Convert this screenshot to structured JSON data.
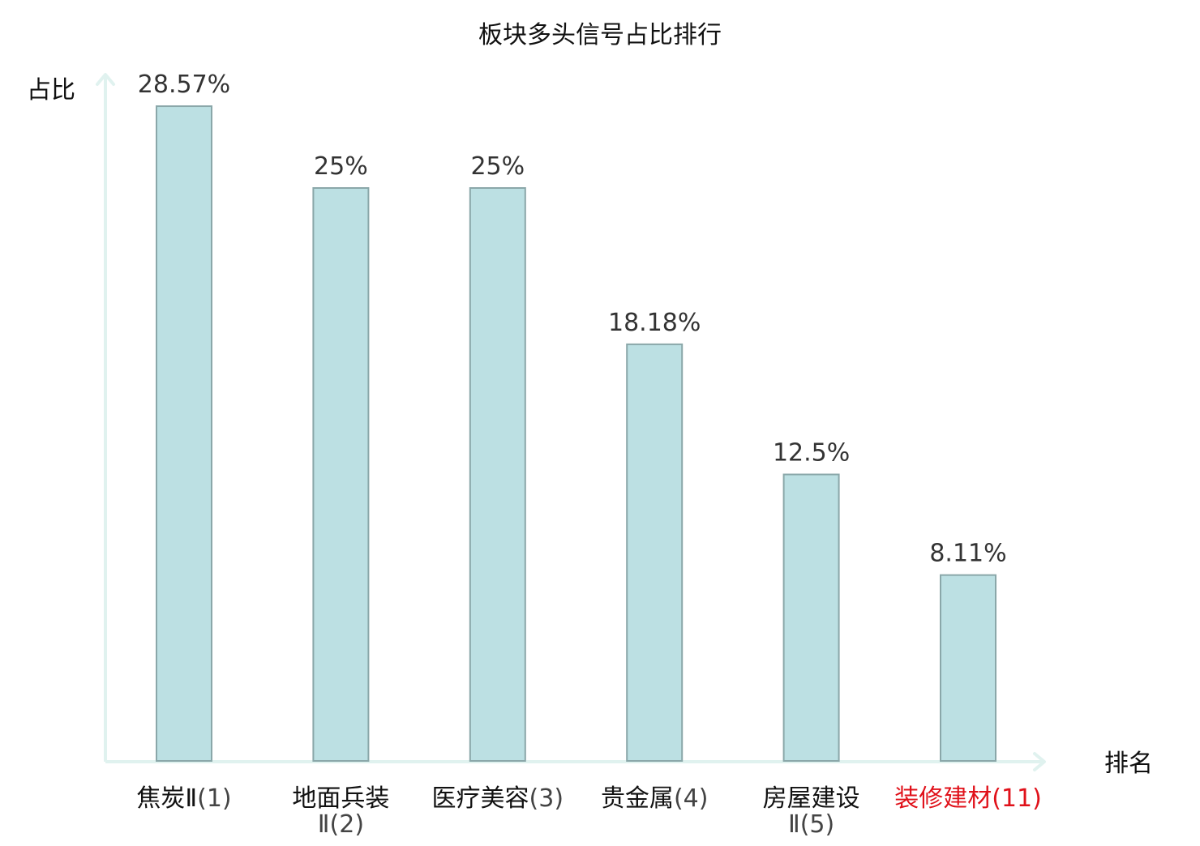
{
  "chart_data": {
    "type": "bar",
    "title": "板块多头信号占比排行",
    "ylabel": "占比",
    "xlabel": "排名",
    "ylim": [
      0,
      30
    ],
    "grid": false,
    "legend": "none",
    "categories": [
      {
        "label": "焦炭Ⅱ",
        "rank": "(1)",
        "highlight": false
      },
      {
        "label": "地面兵装",
        "sublabel": "Ⅱ",
        "rank": "(2)",
        "highlight": false
      },
      {
        "label": "医疗美容",
        "rank": "(3)",
        "highlight": false
      },
      {
        "label": "贵金属",
        "rank": "(4)",
        "highlight": false
      },
      {
        "label": "房屋建设",
        "sublabel": "Ⅱ",
        "rank": "(5)",
        "highlight": false
      },
      {
        "label": "装修建材",
        "rank": "(11)",
        "highlight": true
      }
    ],
    "values": [
      28.57,
      25,
      25,
      18.18,
      12.5,
      8.11
    ],
    "data_labels": [
      "28.57%",
      "25%",
      "25%",
      "18.18%",
      "12.5%",
      "8.11%"
    ]
  },
  "colors": {
    "bar_fill": "#bce0e3",
    "bar_stroke": "#8aa7a9",
    "axis": "#e0f2ef",
    "text": "#111111",
    "value_text": "#333333",
    "rank_text": "#444444",
    "highlight": "#e0111a"
  }
}
